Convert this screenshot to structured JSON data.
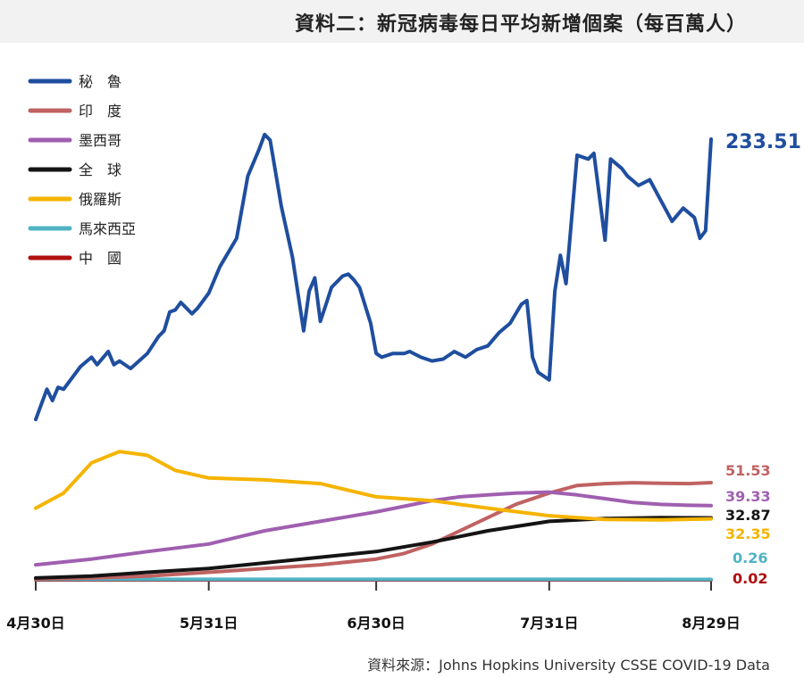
{
  "title": "資料二：新冠病毒每日平均新增個案（每百萬人）",
  "source": "資料來源：Johns Hopkins University CSSE COVID-19 Data",
  "chart_data": {
    "type": "line",
    "title": "資料二：新冠病毒每日平均新增個案（每百萬人）",
    "x_ticks": [
      {
        "label": "4月30日",
        "date": "2021-04-30"
      },
      {
        "label": "5月31日",
        "date": "2021-05-31"
      },
      {
        "label": "6月30日",
        "date": "2021-06-30"
      },
      {
        "label": "7月31日",
        "date": "2021-07-31"
      },
      {
        "label": "8月29日",
        "date": "2021-08-29"
      }
    ],
    "xlim": [
      "2021-04-30",
      "2021-08-29"
    ],
    "ylim": [
      0,
      260
    ],
    "grid": false,
    "legend_position": "top-left",
    "series": [
      {
        "name": "秘　魯",
        "color": "#1f4e9f",
        "end_label": "233.51",
        "label_color": "#1f4e9f",
        "points": [
          [
            "2021-04-30",
            85
          ],
          [
            "2021-05-02",
            101
          ],
          [
            "2021-05-03",
            95
          ],
          [
            "2021-05-04",
            102
          ],
          [
            "2021-05-05",
            101
          ],
          [
            "2021-05-08",
            113
          ],
          [
            "2021-05-10",
            118
          ],
          [
            "2021-05-11",
            114
          ],
          [
            "2021-05-13",
            121
          ],
          [
            "2021-05-14",
            114
          ],
          [
            "2021-05-15",
            116
          ],
          [
            "2021-05-17",
            112
          ],
          [
            "2021-05-20",
            120
          ],
          [
            "2021-05-22",
            129
          ],
          [
            "2021-05-23",
            132
          ],
          [
            "2021-05-24",
            142
          ],
          [
            "2021-05-25",
            143
          ],
          [
            "2021-05-26",
            147
          ],
          [
            "2021-05-28",
            141
          ],
          [
            "2021-05-29",
            144
          ],
          [
            "2021-05-31",
            152
          ],
          [
            "2021-06-02",
            166
          ],
          [
            "2021-06-03",
            171
          ],
          [
            "2021-06-05",
            181
          ],
          [
            "2021-06-07",
            214
          ],
          [
            "2021-06-09",
            228
          ],
          [
            "2021-06-10",
            236
          ],
          [
            "2021-06-11",
            233
          ],
          [
            "2021-06-13",
            198
          ],
          [
            "2021-06-15",
            171
          ],
          [
            "2021-06-17",
            132
          ],
          [
            "2021-06-18",
            153
          ],
          [
            "2021-06-19",
            160
          ],
          [
            "2021-06-20",
            137
          ],
          [
            "2021-06-21",
            146
          ],
          [
            "2021-06-22",
            155
          ],
          [
            "2021-06-24",
            161
          ],
          [
            "2021-06-25",
            162
          ],
          [
            "2021-06-26",
            159
          ],
          [
            "2021-06-27",
            155
          ],
          [
            "2021-06-29",
            136
          ],
          [
            "2021-06-30",
            120
          ],
          [
            "2021-07-01",
            118
          ],
          [
            "2021-07-03",
            120
          ],
          [
            "2021-07-05",
            120
          ],
          [
            "2021-07-06",
            121
          ],
          [
            "2021-07-08",
            118
          ],
          [
            "2021-07-10",
            116
          ],
          [
            "2021-07-12",
            117
          ],
          [
            "2021-07-14",
            121
          ],
          [
            "2021-07-16",
            118
          ],
          [
            "2021-07-18",
            122
          ],
          [
            "2021-07-20",
            124
          ],
          [
            "2021-07-22",
            131
          ],
          [
            "2021-07-24",
            136
          ],
          [
            "2021-07-25",
            141
          ],
          [
            "2021-07-26",
            146
          ],
          [
            "2021-07-27",
            148
          ],
          [
            "2021-07-28",
            118
          ],
          [
            "2021-07-29",
            110
          ],
          [
            "2021-07-31",
            106
          ],
          [
            "2021-08-01",
            153
          ],
          [
            "2021-08-02",
            172
          ],
          [
            "2021-08-03",
            157
          ],
          [
            "2021-08-05",
            225
          ],
          [
            "2021-08-07",
            223
          ],
          [
            "2021-08-08",
            226
          ],
          [
            "2021-08-10",
            180
          ],
          [
            "2021-08-11",
            223
          ],
          [
            "2021-08-13",
            218
          ],
          [
            "2021-08-14",
            214
          ],
          [
            "2021-08-16",
            209
          ],
          [
            "2021-08-18",
            212
          ],
          [
            "2021-08-20",
            201
          ],
          [
            "2021-08-22",
            190
          ],
          [
            "2021-08-24",
            197
          ],
          [
            "2021-08-26",
            192
          ],
          [
            "2021-08-27",
            181
          ],
          [
            "2021-08-28",
            185
          ],
          [
            "2021-08-29",
            233.51
          ]
        ]
      },
      {
        "name": "印　度",
        "color": "#c06262",
        "end_label": "51.53",
        "label_color": "#c06262",
        "points": [
          [
            "2021-04-30",
            0.5
          ],
          [
            "2021-05-10",
            1
          ],
          [
            "2021-05-20",
            2
          ],
          [
            "2021-05-31",
            4
          ],
          [
            "2021-06-10",
            6
          ],
          [
            "2021-06-20",
            8
          ],
          [
            "2021-06-30",
            11
          ],
          [
            "2021-07-05",
            14
          ],
          [
            "2021-07-10",
            19
          ],
          [
            "2021-07-15",
            26
          ],
          [
            "2021-07-20",
            33
          ],
          [
            "2021-07-25",
            40
          ],
          [
            "2021-07-31",
            46
          ],
          [
            "2021-08-05",
            50
          ],
          [
            "2021-08-10",
            51
          ],
          [
            "2021-08-15",
            51.5
          ],
          [
            "2021-08-20",
            51.2
          ],
          [
            "2021-08-25",
            51
          ],
          [
            "2021-08-29",
            51.53
          ]
        ]
      },
      {
        "name": "墨西哥",
        "color": "#a05fb0",
        "end_label": "39.33",
        "label_color": "#a05fb0",
        "points": [
          [
            "2021-04-30",
            8
          ],
          [
            "2021-05-10",
            11
          ],
          [
            "2021-05-20",
            15
          ],
          [
            "2021-05-31",
            19
          ],
          [
            "2021-06-10",
            26
          ],
          [
            "2021-06-20",
            31
          ],
          [
            "2021-06-30",
            36
          ],
          [
            "2021-07-05",
            39
          ],
          [
            "2021-07-10",
            42
          ],
          [
            "2021-07-15",
            44
          ],
          [
            "2021-07-20",
            45
          ],
          [
            "2021-07-25",
            46
          ],
          [
            "2021-07-31",
            46.5
          ],
          [
            "2021-08-05",
            45
          ],
          [
            "2021-08-10",
            43
          ],
          [
            "2021-08-15",
            41
          ],
          [
            "2021-08-20",
            40
          ],
          [
            "2021-08-25",
            39.5
          ],
          [
            "2021-08-29",
            39.33
          ]
        ]
      },
      {
        "name": "全　球",
        "color": "#141414",
        "end_label": "32.87",
        "label_color": "#141414",
        "points": [
          [
            "2021-04-30",
            1
          ],
          [
            "2021-05-10",
            2
          ],
          [
            "2021-05-20",
            4
          ],
          [
            "2021-05-31",
            6
          ],
          [
            "2021-06-10",
            9
          ],
          [
            "2021-06-20",
            12
          ],
          [
            "2021-06-30",
            15
          ],
          [
            "2021-07-10",
            20
          ],
          [
            "2021-07-20",
            26
          ],
          [
            "2021-07-31",
            31
          ],
          [
            "2021-08-10",
            32.5
          ],
          [
            "2021-08-20",
            33
          ],
          [
            "2021-08-29",
            32.87
          ]
        ]
      },
      {
        "name": "俄羅斯",
        "color": "#f5b400",
        "end_label": "32.35",
        "label_color": "#f5b400",
        "points": [
          [
            "2021-04-30",
            38
          ],
          [
            "2021-05-05",
            46
          ],
          [
            "2021-05-10",
            62
          ],
          [
            "2021-05-15",
            68
          ],
          [
            "2021-05-20",
            66
          ],
          [
            "2021-05-25",
            58
          ],
          [
            "2021-05-31",
            54
          ],
          [
            "2021-06-10",
            53
          ],
          [
            "2021-06-20",
            51
          ],
          [
            "2021-06-30",
            44
          ],
          [
            "2021-07-10",
            42
          ],
          [
            "2021-07-20",
            38
          ],
          [
            "2021-07-31",
            34
          ],
          [
            "2021-08-10",
            32
          ],
          [
            "2021-08-20",
            31.8
          ],
          [
            "2021-08-29",
            32.35
          ]
        ]
      },
      {
        "name": "馬來西亞",
        "color": "#4fb3c4",
        "end_label": "0.26",
        "label_color": "#4fb3c4",
        "points": [
          [
            "2021-04-30",
            0.3
          ],
          [
            "2021-05-31",
            0.3
          ],
          [
            "2021-06-30",
            0.28
          ],
          [
            "2021-07-31",
            0.27
          ],
          [
            "2021-08-29",
            0.26
          ]
        ]
      },
      {
        "name": "中　國",
        "color": "#b01010",
        "end_label": "0.02",
        "label_color": "#b01010",
        "points": [
          [
            "2021-04-30",
            0.02
          ],
          [
            "2021-05-31",
            0.02
          ],
          [
            "2021-06-30",
            0.02
          ],
          [
            "2021-07-31",
            0.02
          ],
          [
            "2021-08-29",
            0.02
          ]
        ]
      }
    ]
  }
}
